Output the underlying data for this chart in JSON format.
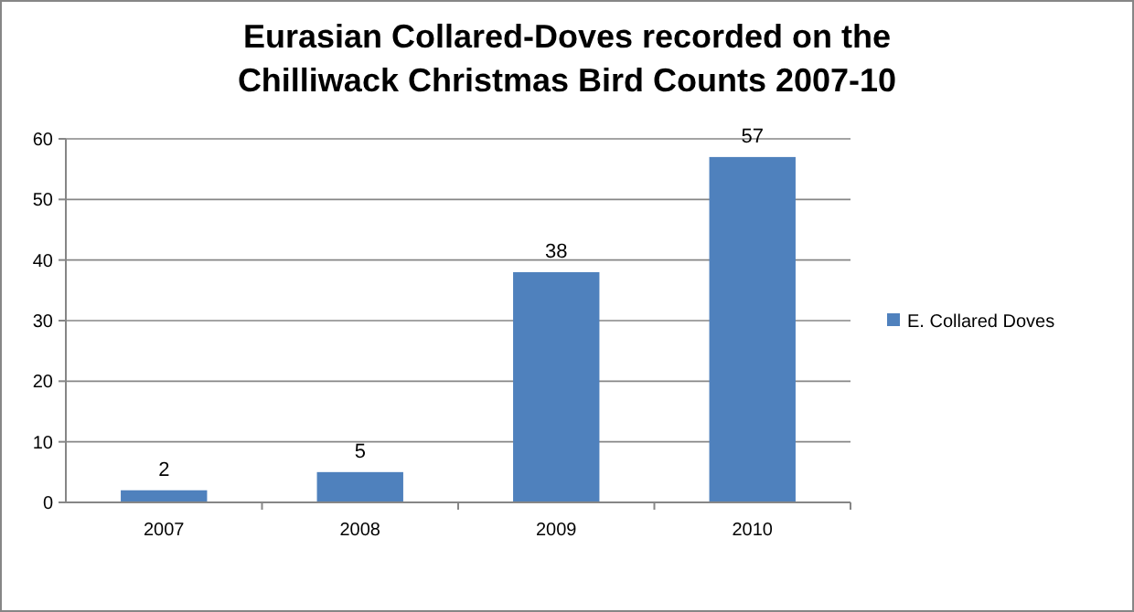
{
  "chart_data": {
    "type": "bar",
    "title": "Eurasian Collared-Doves recorded on the Chilliwack Christmas Bird Counts 2007-10",
    "categories": [
      "2007",
      "2008",
      "2009",
      "2010"
    ],
    "series": [
      {
        "name": "E. Collared Doves",
        "color": "#4f81bd",
        "values": [
          2,
          5,
          38,
          57
        ]
      }
    ],
    "ylim": [
      0,
      60
    ],
    "yticks": [
      0,
      10,
      20,
      30,
      40,
      50,
      60
    ],
    "grid": "y",
    "legend": "right",
    "data_labels": true
  }
}
